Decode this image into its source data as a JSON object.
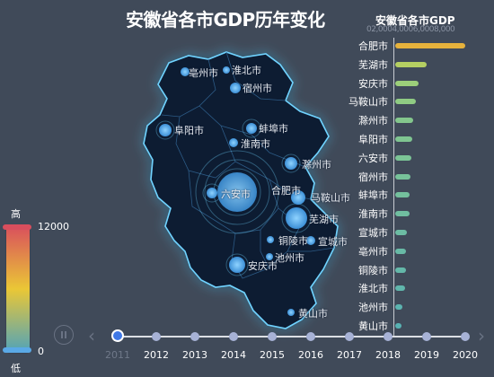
{
  "title": "安徽省各市GDP历年变化",
  "rank_title": "安徽省各市GDP",
  "axis_top_text": "02,0004,0006,0008,000",
  "visual_map": {
    "high_label": "高",
    "low_label": "低",
    "max_value": "12000",
    "min_value": "0",
    "colors": [
      "#d94e5d",
      "#eac736",
      "#50a3ba"
    ]
  },
  "map_cities": [
    {
      "name": "亳州市"
    },
    {
      "name": "淮北市"
    },
    {
      "name": "宿州市"
    },
    {
      "name": "阜阳市"
    },
    {
      "name": "蚌埠市"
    },
    {
      "name": "淮南市"
    },
    {
      "name": "滁州市"
    },
    {
      "name": "六安市"
    },
    {
      "name": "合肥市"
    },
    {
      "name": "马鞍山市"
    },
    {
      "name": "芜湖市"
    },
    {
      "name": "铜陵市"
    },
    {
      "name": "宣城市"
    },
    {
      "name": "池州市"
    },
    {
      "name": "安庆市"
    },
    {
      "name": "黄山市"
    }
  ],
  "ranking": [
    {
      "name": "合肥市",
      "color": "#e6b23c",
      "value": 1.0
    },
    {
      "name": "芜湖市",
      "color": "#b5cf62",
      "value": 0.45
    },
    {
      "name": "安庆市",
      "color": "#9ccf7a",
      "value": 0.33
    },
    {
      "name": "马鞍山市",
      "color": "#8fcb83",
      "value": 0.29
    },
    {
      "name": "滁州市",
      "color": "#84c78d",
      "value": 0.25
    },
    {
      "name": "阜阳市",
      "color": "#7fc591",
      "value": 0.24
    },
    {
      "name": "六安市",
      "color": "#7bc496",
      "value": 0.23
    },
    {
      "name": "宿州市",
      "color": "#77c29a",
      "value": 0.22
    },
    {
      "name": "蚌埠市",
      "color": "#74c09d",
      "value": 0.21
    },
    {
      "name": "淮南市",
      "color": "#70bea0",
      "value": 0.2
    },
    {
      "name": "宣城市",
      "color": "#6cbca3",
      "value": 0.17
    },
    {
      "name": "亳州市",
      "color": "#68baa6",
      "value": 0.16
    },
    {
      "name": "铜陵市",
      "color": "#64b8a9",
      "value": 0.15
    },
    {
      "name": "淮北市",
      "color": "#60b6ac",
      "value": 0.14
    },
    {
      "name": "池州市",
      "color": "#5cb4b0",
      "value": 0.1
    },
    {
      "name": "黄山市",
      "color": "#58b2b3",
      "value": 0.09
    }
  ],
  "timeline": {
    "years": [
      "2011",
      "2012",
      "2013",
      "2014",
      "2015",
      "2016",
      "2017",
      "2018",
      "2019",
      "2020"
    ],
    "current_index": 0
  }
}
